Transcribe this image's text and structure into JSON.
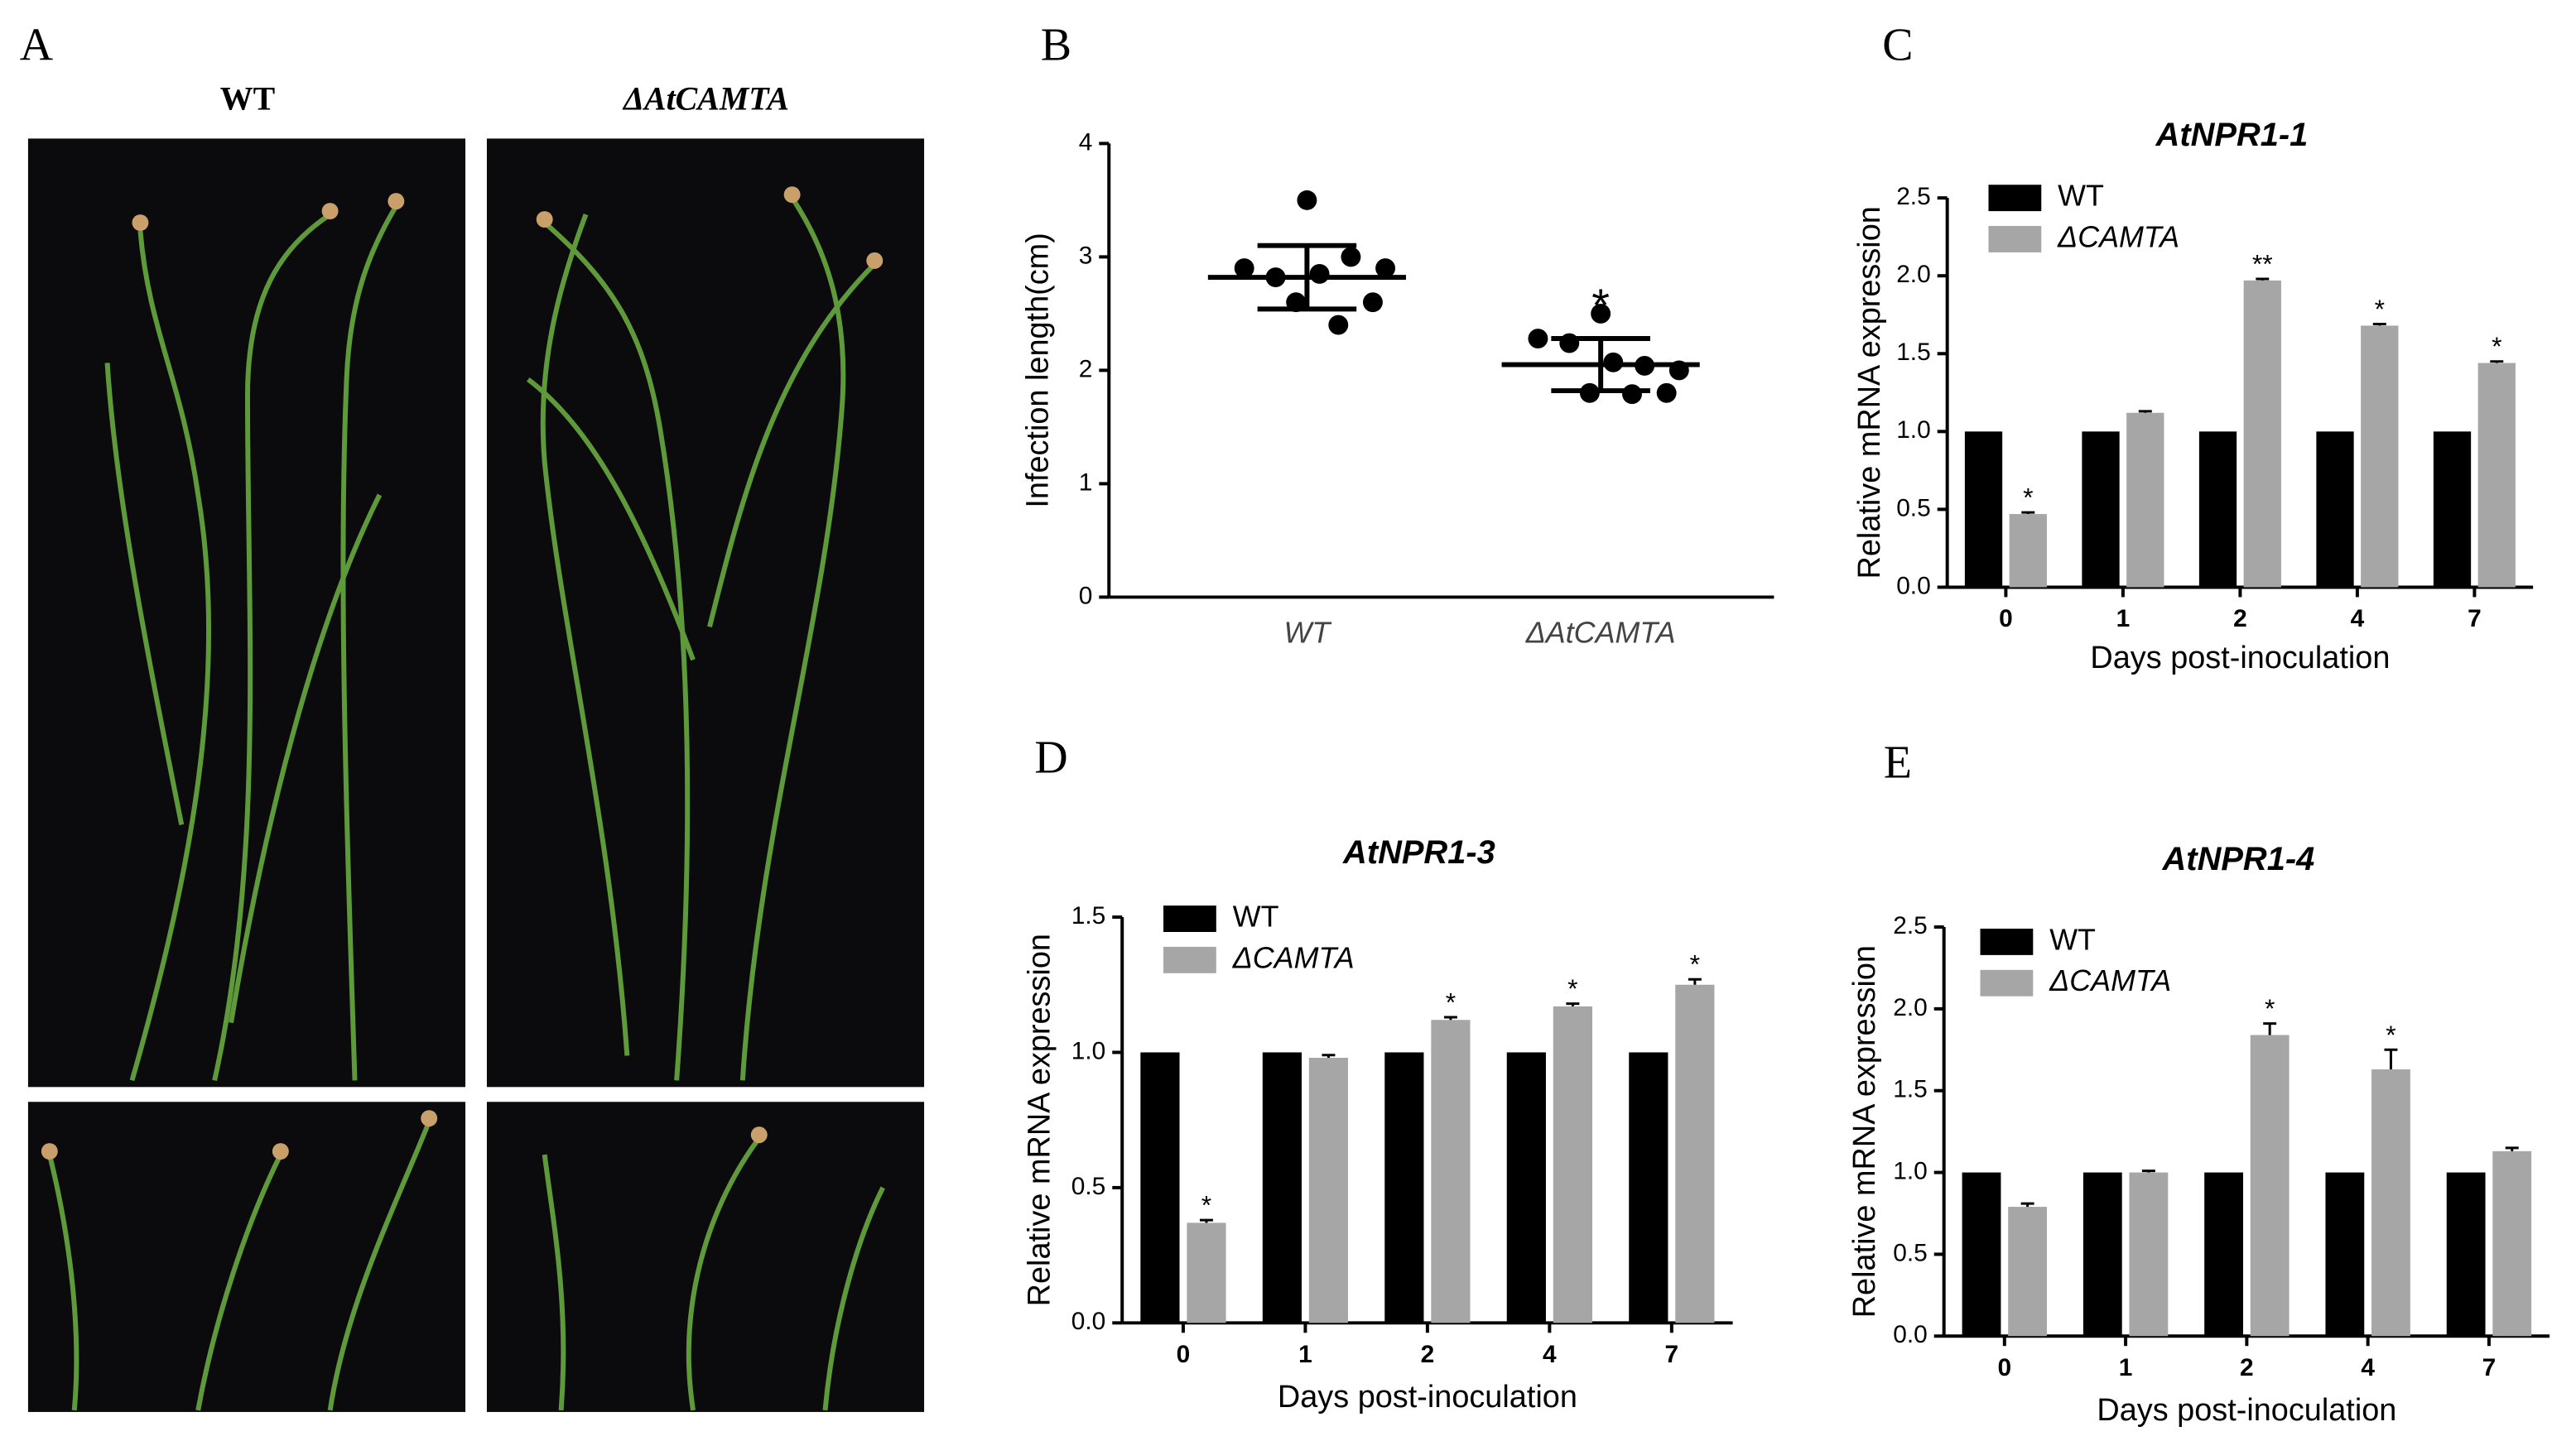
{
  "photo_panel": {
    "panel_label": "A",
    "columns": [
      "WT",
      "ΔAtCAMTA"
    ]
  },
  "chart_data": [
    {
      "type": "dotplot",
      "panel_label": "B",
      "ylabel": "Infection length(cm)",
      "categories": [
        "WT",
        "ΔAtCAMTA"
      ],
      "points": [
        [
          3.5,
          2.9,
          2.82,
          3.0,
          2.9,
          2.85,
          2.6,
          2.4,
          2.6
        ],
        [
          2.5,
          2.28,
          2.24,
          2.04,
          2.0,
          2.07,
          1.8,
          1.79,
          1.8
        ]
      ],
      "means": [
        2.82,
        2.05
      ],
      "sd": [
        0.28,
        0.23
      ],
      "significance": [
        null,
        "*"
      ],
      "color": "#000000",
      "ylim": [
        0,
        4
      ],
      "yticks": [
        0,
        1,
        2,
        3,
        4
      ]
    },
    {
      "type": "bar",
      "panel_label": "C",
      "title": "AtNPR1-1",
      "xlabel": "Days post-inoculation",
      "ylabel": "Relative mRNA expression",
      "categories": [
        "0",
        "1",
        "2",
        "4",
        "7"
      ],
      "series": [
        {
          "name": "WT",
          "color": "#000000",
          "values": [
            1.0,
            1.0,
            1.0,
            1.0,
            1.0
          ]
        },
        {
          "name": "ΔCAMTA",
          "color": "#a6a6a6",
          "values": [
            0.47,
            1.12,
            1.97,
            1.68,
            1.44
          ],
          "errors": [
            0.01,
            0.01,
            0.01,
            0.01,
            0.01
          ],
          "significance": [
            "*",
            null,
            "**",
            "*",
            "*"
          ]
        }
      ],
      "ylim": [
        0,
        2.5
      ],
      "yticks": [
        {
          "value": 0,
          "label": "0.0"
        },
        0.5,
        {
          "value": 1,
          "label": "1.0"
        },
        1.5,
        {
          "value": 2,
          "label": "2.0"
        },
        2.5
      ]
    },
    {
      "type": "bar",
      "panel_label": "D",
      "title": "AtNPR1-3",
      "xlabel": "Days post-inoculation",
      "ylabel": "Relative mRNA expression",
      "categories": [
        "0",
        "1",
        "2",
        "4",
        "7"
      ],
      "series": [
        {
          "name": "WT",
          "color": "#000000",
          "values": [
            1.0,
            1.0,
            1.0,
            1.0,
            1.0
          ]
        },
        {
          "name": "ΔCAMTA",
          "color": "#a6a6a6",
          "values": [
            0.37,
            0.98,
            1.12,
            1.17,
            1.25
          ],
          "errors": [
            0.01,
            0.01,
            0.01,
            0.01,
            0.02
          ],
          "significance": [
            "*",
            null,
            "*",
            "*",
            "*"
          ]
        }
      ],
      "ylim": [
        0,
        1.5
      ],
      "yticks": [
        {
          "value": 0,
          "label": "0.0"
        },
        0.5,
        {
          "value": 1,
          "label": "1.0"
        },
        1.5
      ]
    },
    {
      "type": "bar",
      "panel_label": "E",
      "title": "AtNPR1-4",
      "xlabel": "Days post-inoculation",
      "ylabel": "Relative mRNA expression",
      "categories": [
        "0",
        "1",
        "2",
        "4",
        "7"
      ],
      "series": [
        {
          "name": "WT",
          "color": "#000000",
          "values": [
            1.0,
            1.0,
            1.0,
            1.0,
            1.0
          ]
        },
        {
          "name": "ΔCAMTA",
          "color": "#a6a6a6",
          "values": [
            0.79,
            1.0,
            1.84,
            1.63,
            1.13
          ],
          "errors": [
            0.02,
            0.01,
            0.07,
            0.12,
            0.02
          ],
          "significance": [
            null,
            null,
            "*",
            "*",
            null
          ]
        }
      ],
      "ylim": [
        0,
        2.5
      ],
      "yticks": [
        {
          "value": 0,
          "label": "0.0"
        },
        0.5,
        {
          "value": 1,
          "label": "1.0"
        },
        1.5,
        {
          "value": 2,
          "label": "2.0"
        },
        2.5
      ]
    }
  ]
}
